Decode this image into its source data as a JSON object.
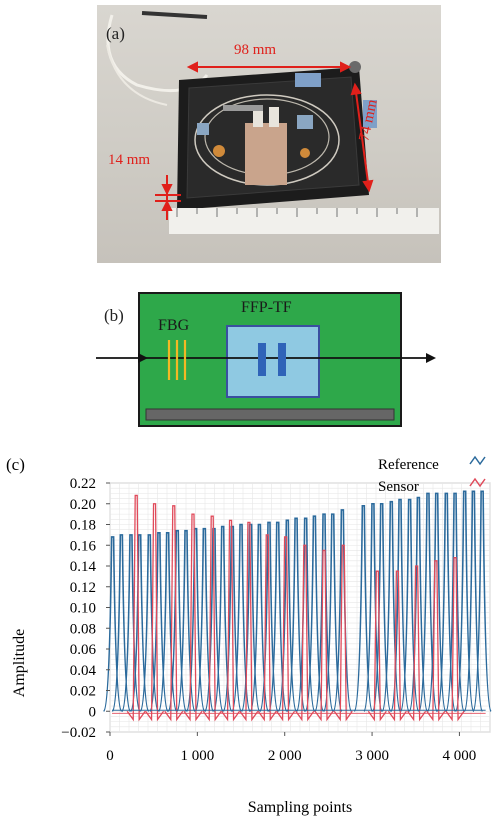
{
  "panel_a": {
    "label": "(a)",
    "dim_width": "98 mm",
    "dim_height": "14 mm",
    "dim_depth": "74 mm"
  },
  "panel_b": {
    "label": "(b)",
    "fbg_label": "FBG",
    "tf_label": "FFP-TF"
  },
  "panel_c": {
    "label": "(c)"
  },
  "colors": {
    "reference": "#2b6a9c",
    "sensor": "#e04a5a",
    "dimension": "#e0201b",
    "board": "#2ea84a",
    "filter": "#8fc9e2"
  },
  "chart_data": {
    "type": "line",
    "xlabel": "Sampling points",
    "ylabel": "Amplitude",
    "xlim": [
      0,
      4350
    ],
    "ylim": [
      -0.02,
      0.22
    ],
    "xticks": [
      0,
      1000,
      2000,
      3000,
      4000
    ],
    "xtick_labels": [
      "0",
      "1 000",
      "2 000",
      "3 000",
      "4 000"
    ],
    "yticks": [
      -0.02,
      0,
      0.02,
      0.04,
      0.06,
      0.08,
      0.1,
      0.12,
      0.14,
      0.16,
      0.18,
      0.2,
      0.22
    ],
    "ytick_labels": [
      "−0.02",
      "0",
      "0.02",
      "0.04",
      "0.06",
      "0.08",
      "0.10",
      "0.12",
      "0.14",
      "0.16",
      "0.18",
      "0.20",
      "0.22"
    ],
    "grid": true,
    "legend_position": "top-right",
    "series": [
      {
        "name": "Reference",
        "peaks_x": [
          30,
          130,
          240,
          340,
          450,
          560,
          660,
          770,
          870,
          980,
          1080,
          1190,
          1290,
          1400,
          1500,
          1610,
          1710,
          1820,
          1920,
          2030,
          2130,
          2240,
          2340,
          2450,
          2550,
          2660,
          2900,
          3010,
          3110,
          3220,
          3320,
          3430,
          3530,
          3640,
          3740,
          3850,
          3950,
          4060,
          4160,
          4260
        ],
        "peaks_y": [
          0.168,
          0.17,
          0.17,
          0.17,
          0.17,
          0.172,
          0.172,
          0.174,
          0.174,
          0.176,
          0.176,
          0.176,
          0.178,
          0.178,
          0.18,
          0.18,
          0.18,
          0.182,
          0.182,
          0.184,
          0.186,
          0.186,
          0.188,
          0.19,
          0.19,
          0.194,
          0.198,
          0.2,
          0.2,
          0.202,
          0.204,
          0.204,
          0.206,
          0.21,
          0.21,
          0.21,
          0.21,
          0.212,
          0.212,
          0.212
        ]
      },
      {
        "name": "Sensor",
        "peaks_x": [
          300,
          510,
          730,
          950,
          1170,
          1380,
          1590,
          1800,
          2010,
          2230,
          2450,
          2670,
          3060,
          3290,
          3510,
          3730,
          3950
        ],
        "peaks_y": [
          0.208,
          0.2,
          0.198,
          0.19,
          0.188,
          0.184,
          0.182,
          0.17,
          0.168,
          0.16,
          0.155,
          0.16,
          0.135,
          0.135,
          0.14,
          0.145,
          0.148
        ]
      }
    ]
  }
}
